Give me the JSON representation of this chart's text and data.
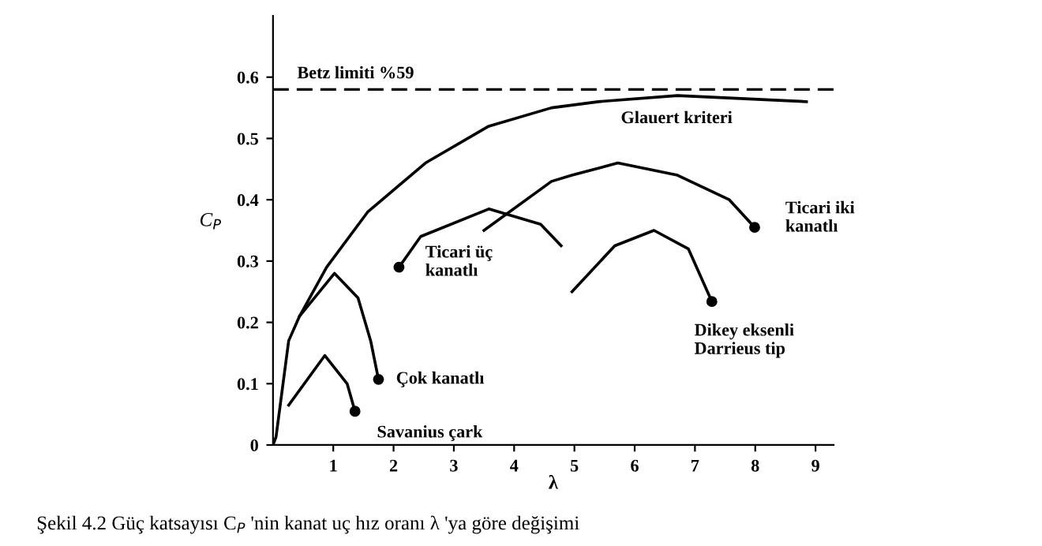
{
  "chart_data": {
    "type": "line",
    "xlabel": "λ",
    "ylabel": "C$_{P}$",
    "xlim": [
      0,
      9.3
    ],
    "ylim": [
      0,
      0.7
    ],
    "xticks": [
      1,
      2,
      3,
      4,
      5,
      6,
      7,
      8,
      9
    ],
    "yticks": [
      0,
      0.1,
      0.2,
      0.3,
      0.4,
      0.5,
      0.6
    ],
    "grid": false,
    "line_style": "solid",
    "ref_lines": [
      {
        "axis": "y",
        "value": 0.58,
        "label": "Betz limiti %59",
        "color": "#000000",
        "line_style": "dashed"
      }
    ],
    "series": [
      {
        "color": "#000000",
        "x": [
          0,
          0.05,
          0.26,
          0.44,
          0.89,
          1.57,
          2.53,
          3.58,
          4.62,
          5.4,
          6.71,
          8.85
        ],
        "values": [
          0,
          0.013,
          0.17,
          0.21,
          0.29,
          0.38,
          0.46,
          0.52,
          0.55,
          0.56,
          0.57,
          0.56
        ]
      },
      {
        "color": "#000000",
        "x": [
          0.44,
          1.02,
          1.41,
          1.62,
          1.75
        ],
        "values": [
          0.21,
          0.28,
          0.24,
          0.17,
          0.107
        ]
      },
      {
        "color": "#000000",
        "x": [
          0.26,
          0.86,
          1.23,
          1.36
        ],
        "values": [
          0.065,
          0.146,
          0.1,
          0.055
        ]
      },
      {
        "color": "#000000",
        "x": [
          2.09,
          2.45,
          3.58,
          4.44,
          4.78
        ],
        "values": [
          0.29,
          0.34,
          0.385,
          0.36,
          0.325
        ]
      },
      {
        "color": "#000000",
        "x": [
          3.5,
          4.62,
          4.96,
          5.72,
          6.71,
          7.57,
          7.99
        ],
        "values": [
          0.35,
          0.43,
          0.44,
          0.46,
          0.44,
          0.4,
          0.355
        ]
      },
      {
        "color": "#000000",
        "x": [
          4.96,
          5.67,
          6.32,
          6.89,
          7.28
        ],
        "values": [
          0.25,
          0.325,
          0.35,
          0.32,
          0.234
        ]
      }
    ],
    "annotations": [
      "Glauert kriteri",
      {
        "text": "Çok kanatlı",
        "x": 1.75,
        "y": 0.107
      },
      {
        "text": "Savanius çark",
        "x": 1.36,
        "y": 0.055
      },
      {
        "text": "Ticari üç\nkanatlı",
        "x": 2.09,
        "y": 0.29
      },
      {
        "text": "Ticari iki\nkanatlı",
        "x": 7.99,
        "y": 0.355
      },
      {
        "text": "Dikey eksenli\nDarrieus tip",
        "x": 7.28,
        "y": 0.234
      },
      "Şekil 4.2 Güç katsayısı C$_{P}$ 'nin kanat uç hız oranı λ 'ya göre değişimi"
    ]
  }
}
